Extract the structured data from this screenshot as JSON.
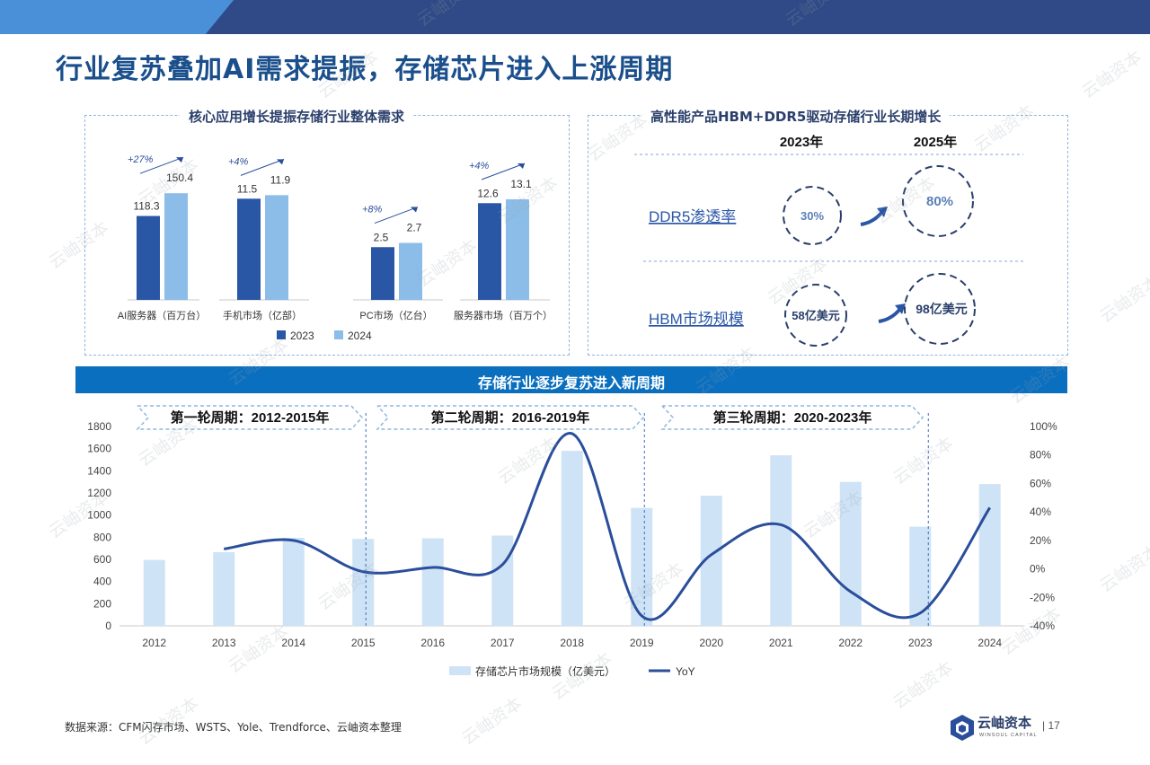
{
  "page": {
    "title": "行业复苏叠加AI需求提振，存储芯片进入上涨周期",
    "source": "数据来源：CFM闪存市场、WSTS、Yole、Trendforce、云岫资本整理",
    "page_number": "17",
    "logo_name": "云岫资本",
    "logo_sub": "WINSOUL CAPITAL",
    "watermark": "云岫资本"
  },
  "colors": {
    "dark_blue": "#2a56a6",
    "light_blue": "#8bbde8",
    "pale_blue": "#cfe3f6",
    "line_blue": "#2a4e9b",
    "banner": "#0b6fbf"
  },
  "left_panel": {
    "title": "核心应用增长提振存储行业整体需求"
  },
  "right_panel": {
    "title": "高性能产品HBM+DDR5驱动存储行业长期增长",
    "year_a": "2023年",
    "year_b": "2025年",
    "rows": [
      {
        "label": "DDR5渗透率",
        "a": "30%",
        "b": "80%"
      },
      {
        "label": "HBM市场规模",
        "a": "58亿美元",
        "b": "98亿美元"
      }
    ]
  },
  "banner": {
    "title": "存储行业逐步复苏进入新周期"
  },
  "chart_data": [
    {
      "type": "bar",
      "title": "核心应用增长提振存储行业整体需求",
      "categories": [
        "AI服务器（百万台）",
        "手机市场（亿部）",
        "PC市场（亿台）",
        "服务器市场（百万个）"
      ],
      "series": [
        {
          "name": "2023",
          "values": [
            118.3,
            11.5,
            2.5,
            12.6
          ]
        },
        {
          "name": "2024",
          "values": [
            150.4,
            11.9,
            2.7,
            13.1
          ]
        }
      ],
      "value_labels": [
        [
          "118.3",
          "150.4"
        ],
        [
          "11.5",
          "11.9"
        ],
        [
          "2.5",
          "2.7"
        ],
        [
          "12.6",
          "13.1"
        ]
      ],
      "growth_labels": [
        "+27%",
        "+4%",
        "+8%",
        "+4%"
      ],
      "legend": [
        "2023",
        "2024"
      ]
    },
    {
      "type": "bar",
      "title": "存储行业逐步复苏进入新周期",
      "categories": [
        "2012",
        "2013",
        "2014",
        "2015",
        "2016",
        "2017",
        "2018",
        "2019",
        "2020",
        "2021",
        "2022",
        "2023",
        "2024"
      ],
      "series": [
        {
          "name": "存储芯片市场规模（亿美元）",
          "type": "bar",
          "axis": "left",
          "values": [
            595,
            665,
            795,
            785,
            790,
            815,
            1580,
            1065,
            1175,
            1540,
            1300,
            895,
            1280
          ]
        },
        {
          "name": "YoY",
          "type": "line",
          "axis": "right",
          "values": [
            null,
            14,
            20,
            -2,
            1,
            3,
            95,
            -33,
            10,
            31,
            -16,
            -31,
            43
          ]
        }
      ],
      "y_left": {
        "min": 0,
        "max": 1800,
        "ticks": [
          "0",
          "200",
          "400",
          "600",
          "800",
          "1000",
          "1200",
          "1400",
          "1600",
          "1800"
        ]
      },
      "y_right": {
        "min": -40,
        "max": 100,
        "ticks": [
          "-40%",
          "-20%",
          "0%",
          "20%",
          "40%",
          "60%",
          "80%",
          "100%"
        ]
      },
      "cycles": [
        "第一轮周期：2012-2015年",
        "第二轮周期：2016-2019年",
        "第三轮周期：2020-2023年"
      ],
      "legend": [
        "存储芯片市场规模（亿美元）",
        "YoY"
      ]
    }
  ]
}
